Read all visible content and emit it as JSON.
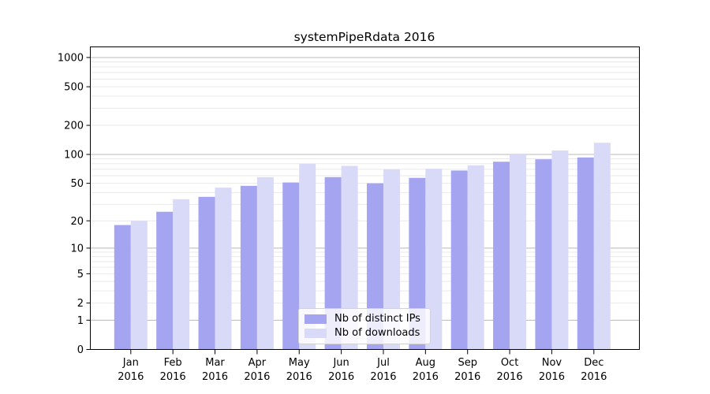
{
  "chart_data": {
    "type": "bar",
    "title": "systemPipeRdata 2016",
    "categories": [
      "Jan 2016",
      "Feb 2016",
      "Mar 2016",
      "Apr 2016",
      "May 2016",
      "Jun 2016",
      "Jul 2016",
      "Aug 2016",
      "Sep 2016",
      "Oct 2016",
      "Nov 2016",
      "Dec 2016"
    ],
    "series": [
      {
        "name": "Nb of distinct IPs",
        "color": "#a4a4f0",
        "values": [
          18,
          25,
          36,
          47,
          51,
          58,
          50,
          57,
          68,
          84,
          89,
          93
        ]
      },
      {
        "name": "Nb of downloads",
        "color": "#d9d9f8",
        "values": [
          20,
          34,
          45,
          58,
          80,
          76,
          70,
          71,
          77,
          102,
          110,
          132
        ]
      }
    ],
    "xlabel": "",
    "ylabel": "",
    "y_axis": {
      "scale": "log1p",
      "ticks": [
        0,
        1,
        2,
        5,
        10,
        20,
        50,
        100,
        200,
        500,
        1000
      ],
      "max": 1000
    },
    "grid": {
      "enabled": true,
      "major_lines": [
        1,
        10,
        100,
        1000
      ],
      "major_color": "#b8b8b8",
      "minor_color": "#e9e9e9"
    },
    "legend_position": "bottom-center-inside",
    "colors": {
      "axis": "#000000",
      "background": "#ffffff"
    }
  }
}
